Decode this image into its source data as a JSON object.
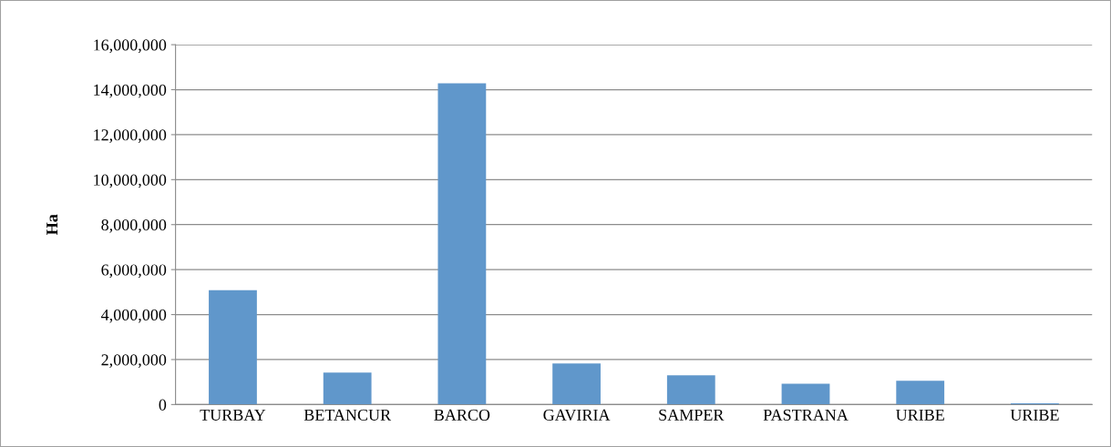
{
  "chart_data": {
    "type": "bar",
    "ylabel": "Ha",
    "categories": [
      "TURBAY",
      "BETANCUR",
      "BARCO",
      "GAVIRIA",
      "SAMPER",
      "PASTRANA",
      "URIBE",
      "URIBE"
    ],
    "values": [
      5080000,
      1420000,
      14280000,
      1830000,
      1300000,
      930000,
      1060000,
      50000
    ],
    "color": "#6097cb",
    "ylim": [
      0,
      16000000
    ],
    "yticks": [
      0,
      {
        "value": 2000000,
        "label": "2,000,000"
      },
      {
        "value": 4000000,
        "label": "4,000,000"
      },
      {
        "value": 6000000,
        "label": "6,000,000"
      },
      {
        "value": 8000000,
        "label": "8,000,000"
      },
      {
        "value": 10000000,
        "label": "10,000,000"
      },
      {
        "value": 12000000,
        "label": "12,000,000"
      },
      {
        "value": 14000000,
        "label": "14,000,000"
      },
      {
        "value": 16000000,
        "label": "16,000,000"
      }
    ],
    "grid": "y",
    "legend": false
  }
}
